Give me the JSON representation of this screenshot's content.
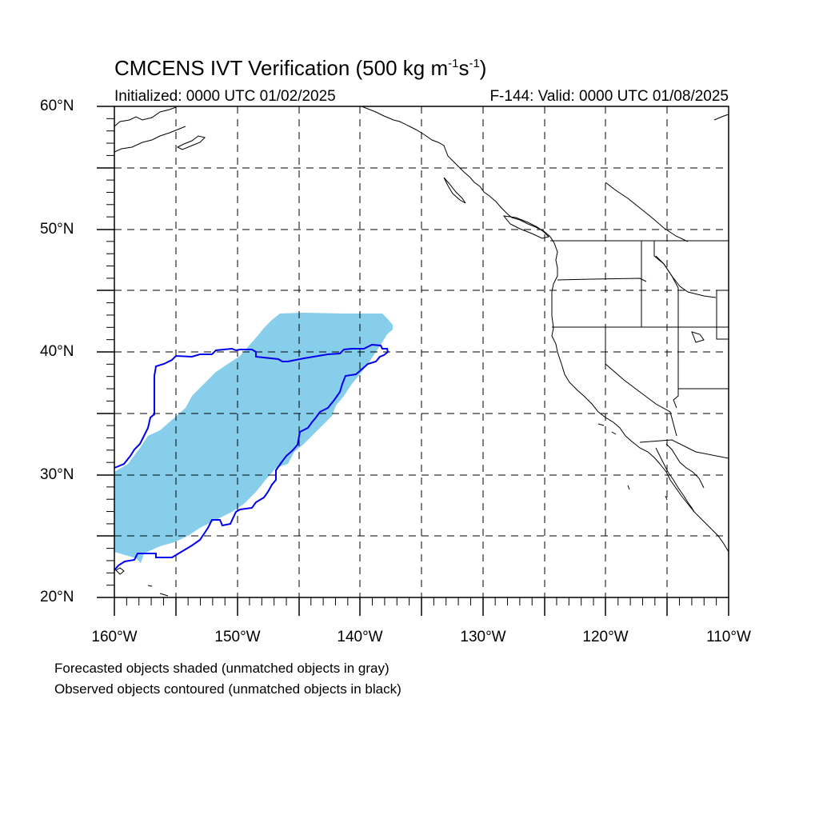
{
  "title": {
    "main": "CMCENS IVT Verification (500 kg m",
    "unit_exp1": "-1",
    "unit_mid": "s",
    "unit_exp2": "-1",
    "unit_close": ")"
  },
  "subtitle": {
    "initialized": "Initialized: 0000 UTC 01/02/2025",
    "valid": "F-144: Valid: 0000 UTC 01/08/2025"
  },
  "axes": {
    "lat_labels": [
      "60°N",
      "50°N",
      "40°N",
      "30°N",
      "20°N"
    ],
    "lon_labels": [
      "160°W",
      "150°W",
      "140°W",
      "130°W",
      "120°W",
      "110°W"
    ],
    "lat_range": [
      20,
      60
    ],
    "lon_range": [
      -160,
      -110
    ]
  },
  "legend": {
    "line1": "Forecasted objects shaded (unmatched objects in gray)",
    "line2": "Observed objects contoured (unmatched objects in black)"
  },
  "colors": {
    "forecast_fill": "#87ceeb",
    "observed_contour": "#0000ee",
    "coastline": "#000000",
    "grid": "#000000"
  }
}
